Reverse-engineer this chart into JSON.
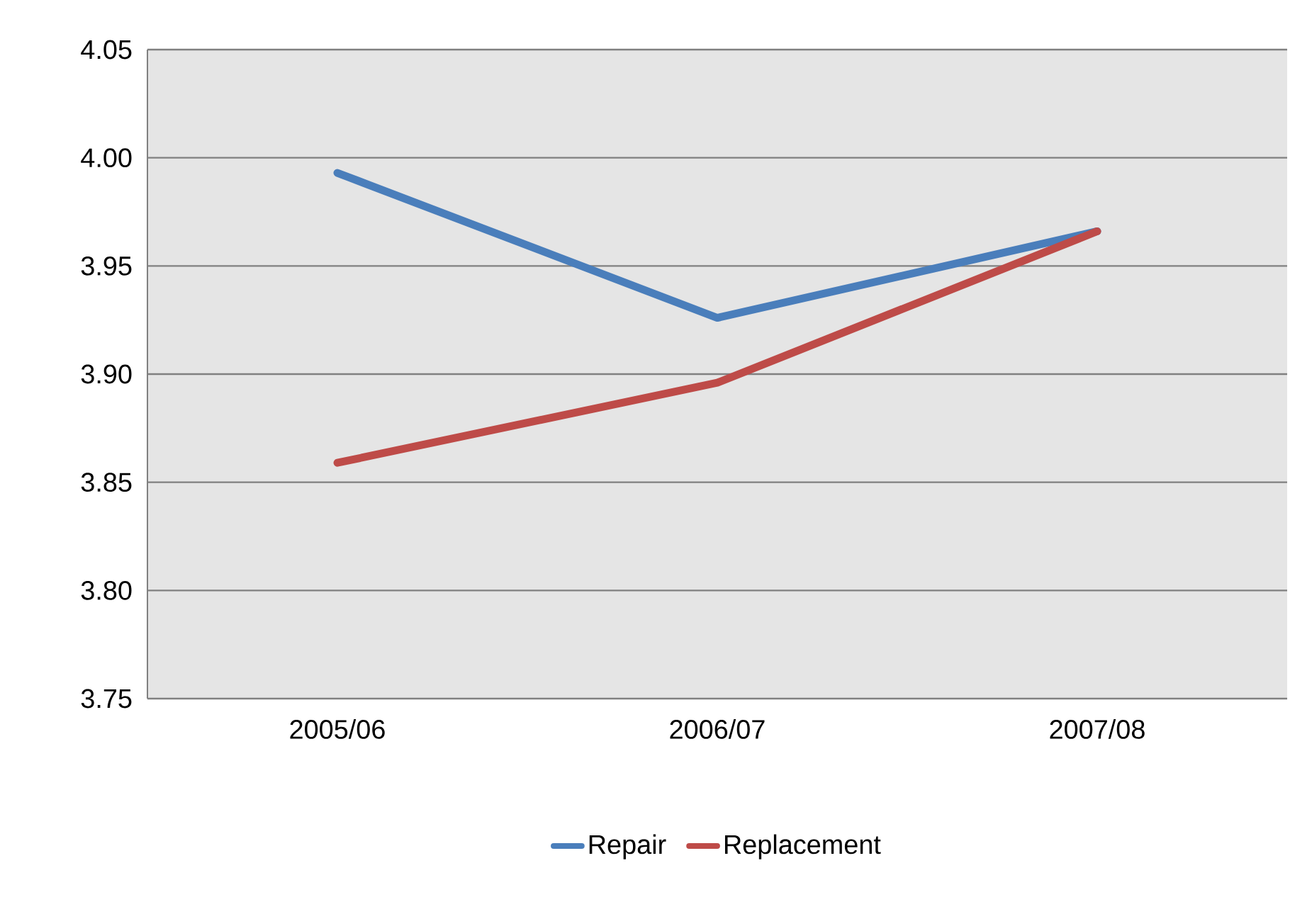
{
  "chart_data": {
    "type": "line",
    "categories": [
      "2005/06",
      "2006/07",
      "2007/08"
    ],
    "series": [
      {
        "name": "Repair",
        "color": "#4a7ebb",
        "values": [
          3.993,
          3.926,
          3.966
        ]
      },
      {
        "name": "Replacement",
        "color": "#be4b48",
        "values": [
          3.859,
          3.896,
          3.966
        ]
      }
    ],
    "ylim": [
      3.75,
      4.05
    ],
    "yticks": [
      {
        "value": 3.75,
        "label": "3.75"
      },
      {
        "value": 3.8,
        "label": "3.80"
      },
      {
        "value": 3.85,
        "label": "3.85"
      },
      {
        "value": 3.9,
        "label": "3.90"
      },
      {
        "value": 3.95,
        "label": "3.95"
      },
      {
        "value": 4.0,
        "label": "4.00"
      },
      {
        "value": 4.05,
        "label": "4.05"
      }
    ],
    "grid": "y",
    "legend": "bottom",
    "marker": "none",
    "line_style": "solid"
  }
}
